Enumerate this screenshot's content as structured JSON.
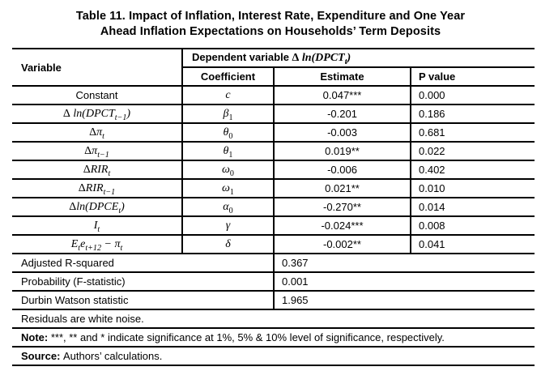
{
  "title": {
    "line1": "Table 11. Impact of Inflation, Interest Rate, Expenditure and One Year",
    "line2": "Ahead Inflation Expectations on Households’ Term Deposits"
  },
  "table": {
    "header": {
      "variable": "Variable",
      "dependent_label": "Dependent variable ",
      "dependent_math": "Δ ln(DPCT_{t})",
      "coefficient": "Coefficient",
      "estimate": "Estimate",
      "p_value": "P value"
    },
    "rows": [
      {
        "variable": "Constant",
        "coefficient": "c",
        "estimate": "0.047***",
        "p_value": "0.000"
      },
      {
        "variable": "Δ ln(DPCT_{t−1})",
        "coefficient": "β_{1}",
        "estimate": "-0.201",
        "p_value": "0.186"
      },
      {
        "variable": "Δπ_{t}",
        "coefficient": "θ_{0}",
        "estimate": "-0.003",
        "p_value": "0.681"
      },
      {
        "variable": "Δπ_{t−1}",
        "coefficient": "θ_{1}",
        "estimate": "0.019**",
        "p_value": "0.022"
      },
      {
        "variable": "ΔRIR_{t}",
        "coefficient": "ω_{0}",
        "estimate": "-0.006",
        "p_value": "0.402"
      },
      {
        "variable": "ΔRIR_{t−1}",
        "coefficient": "ω_{1}",
        "estimate": "0.021**",
        "p_value": "0.010"
      },
      {
        "variable": "Δln(DPCE_{t})",
        "coefficient": "α_{0}",
        "estimate": "-0.270**",
        "p_value": "0.014"
      },
      {
        "variable": "I_{t}",
        "coefficient": "γ",
        "estimate": "-0.024***",
        "p_value": "0.008"
      },
      {
        "variable": "E_{t}e_{t+12} − π_{t}",
        "coefficient": "δ",
        "estimate": "-0.002**",
        "p_value": "0.041"
      }
    ],
    "summary_rows": [
      {
        "label": "Adjusted R-squared",
        "value": "0.367"
      },
      {
        "label": "Probability (F-statistic)",
        "value": "0.001"
      },
      {
        "label": "Durbin Watson statistic",
        "value": "1.965"
      }
    ],
    "notes": [
      {
        "prefix": "",
        "text": "Residuals are white noise."
      },
      {
        "prefix": "Note: ",
        "text": "***, ** and * indicate significance at 1%, 5% & 10% level of significance, respectively."
      },
      {
        "prefix": "Source: ",
        "text": "Authors’ calculations."
      }
    ]
  }
}
